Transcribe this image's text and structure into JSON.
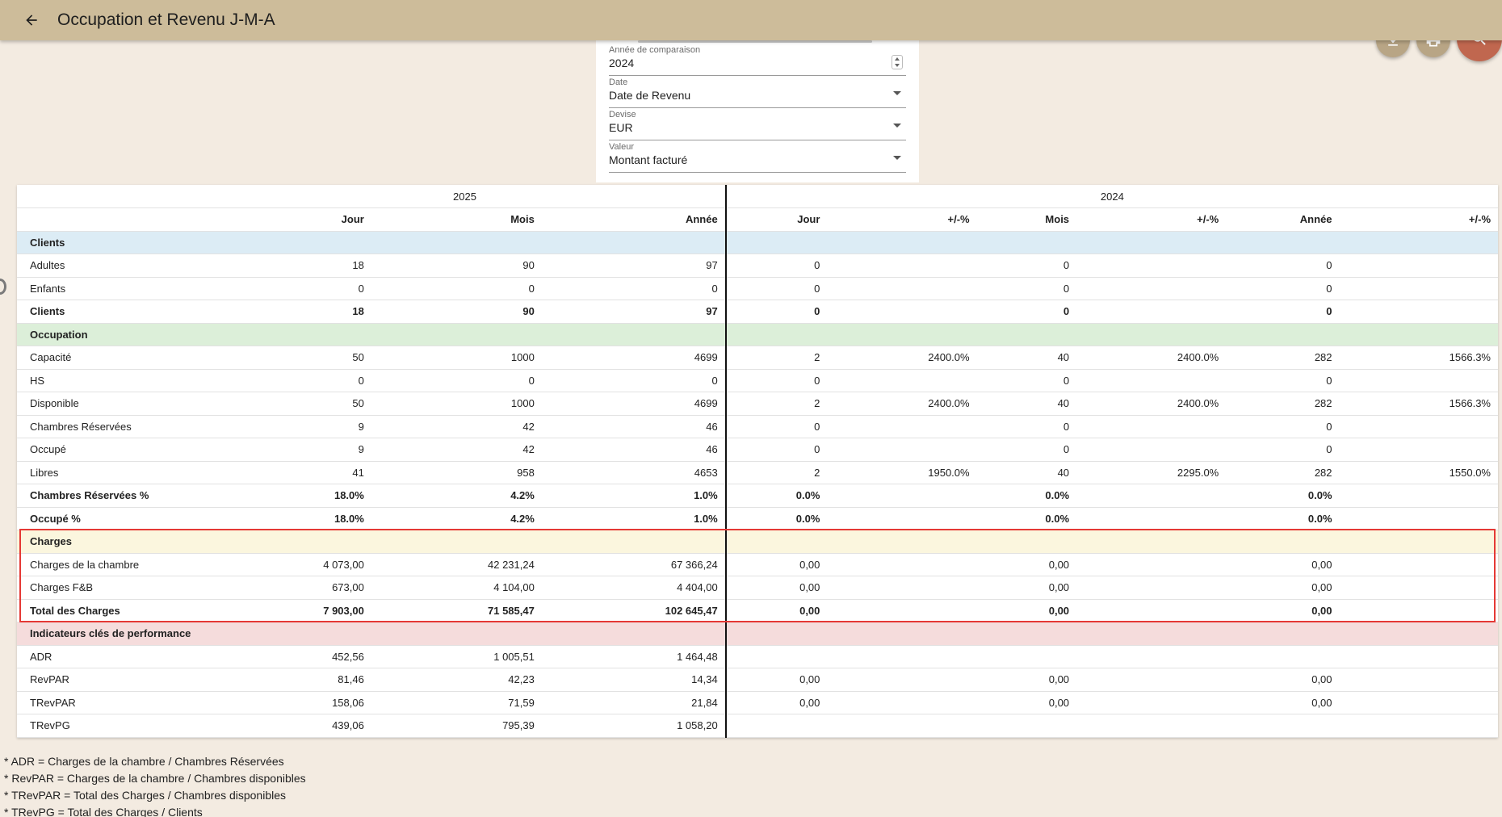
{
  "header": {
    "title": "Occupation et Revenu J-M-A"
  },
  "icons": {
    "back": "arrow-left-icon",
    "download": "download-icon",
    "print": "print-icon",
    "search": "search-icon"
  },
  "colors": {
    "appbar": "#cdbc9a",
    "fab": "#b8a585",
    "search_fab": "#c0674f",
    "highlight": "#e53935"
  },
  "filters": {
    "comparison_year": {
      "label": "Année de comparaison",
      "value": "2024"
    },
    "date": {
      "label": "Date",
      "value": "Date de Revenu"
    },
    "currency": {
      "label": "Devise",
      "value": "EUR"
    },
    "value": {
      "label": "Valeur",
      "value": "Montant facturé"
    }
  },
  "table": {
    "years": [
      "2025",
      "2024"
    ],
    "columns": [
      "",
      "Jour",
      "Mois",
      "Année",
      "Jour",
      "+/-%",
      "Mois",
      "+/-%",
      "Année",
      "+/-%"
    ],
    "rows": [
      {
        "type": "sec-clients",
        "cells": [
          "Clients",
          "",
          "",
          "",
          "",
          "",
          "",
          "",
          "",
          ""
        ]
      },
      {
        "type": "row",
        "cells": [
          "Adultes",
          "18",
          "90",
          "97",
          "0",
          "",
          "0",
          "",
          "0",
          ""
        ]
      },
      {
        "type": "row",
        "cells": [
          "Enfants",
          "0",
          "0",
          "0",
          "0",
          "",
          "0",
          "",
          "0",
          ""
        ]
      },
      {
        "type": "total",
        "cells": [
          "Clients",
          "18",
          "90",
          "97",
          "0",
          "",
          "0",
          "",
          "0",
          ""
        ]
      },
      {
        "type": "sec-occ",
        "cells": [
          "Occupation",
          "",
          "",
          "",
          "",
          "",
          "",
          "",
          "",
          ""
        ]
      },
      {
        "type": "row",
        "cells": [
          "Capacité",
          "50",
          "1000",
          "4699",
          "2",
          "2400.0%",
          "40",
          "2400.0%",
          "282",
          "1566.3%"
        ]
      },
      {
        "type": "row",
        "cells": [
          "HS",
          "0",
          "0",
          "0",
          "0",
          "",
          "0",
          "",
          "0",
          ""
        ]
      },
      {
        "type": "row",
        "cells": [
          "Disponible",
          "50",
          "1000",
          "4699",
          "2",
          "2400.0%",
          "40",
          "2400.0%",
          "282",
          "1566.3%"
        ]
      },
      {
        "type": "row",
        "cells": [
          "Chambres Réservées",
          "9",
          "42",
          "46",
          "0",
          "",
          "0",
          "",
          "0",
          ""
        ]
      },
      {
        "type": "row",
        "cells": [
          "Occupé",
          "9",
          "42",
          "46",
          "0",
          "",
          "0",
          "",
          "0",
          ""
        ]
      },
      {
        "type": "row",
        "cells": [
          "Libres",
          "41",
          "958",
          "4653",
          "2",
          "1950.0%",
          "40",
          "2295.0%",
          "282",
          "1550.0%"
        ]
      },
      {
        "type": "total",
        "cells": [
          "Chambres Réservées %",
          "18.0%",
          "4.2%",
          "1.0%",
          "0.0%",
          "",
          "0.0%",
          "",
          "0.0%",
          ""
        ]
      },
      {
        "type": "total",
        "cells": [
          "Occupé %",
          "18.0%",
          "4.2%",
          "1.0%",
          "0.0%",
          "",
          "0.0%",
          "",
          "0.0%",
          ""
        ]
      },
      {
        "type": "sec-charges",
        "cells": [
          "Charges",
          "",
          "",
          "",
          "",
          "",
          "",
          "",
          "",
          ""
        ]
      },
      {
        "type": "row",
        "cells": [
          "Charges de la chambre",
          "4 073,00",
          "42 231,24",
          "67 366,24",
          "0,00",
          "",
          "0,00",
          "",
          "0,00",
          ""
        ]
      },
      {
        "type": "row",
        "cells": [
          "Charges F&B",
          "673,00",
          "4 104,00",
          "4 404,00",
          "0,00",
          "",
          "0,00",
          "",
          "0,00",
          ""
        ]
      },
      {
        "type": "total",
        "cells": [
          "Total des Charges",
          "7 903,00",
          "71 585,47",
          "102 645,47",
          "0,00",
          "",
          "0,00",
          "",
          "0,00",
          ""
        ]
      },
      {
        "type": "sec-kpi",
        "cells": [
          "Indicateurs clés de performance",
          "",
          "",
          "",
          "",
          "",
          "",
          "",
          "",
          ""
        ]
      },
      {
        "type": "row",
        "cells": [
          "ADR",
          "452,56",
          "1 005,51",
          "1 464,48",
          "",
          "",
          "",
          "",
          "",
          ""
        ]
      },
      {
        "type": "row",
        "cells": [
          "RevPAR",
          "81,46",
          "42,23",
          "14,34",
          "0,00",
          "",
          "0,00",
          "",
          "0,00",
          ""
        ]
      },
      {
        "type": "row",
        "cells": [
          "TRevPAR",
          "158,06",
          "71,59",
          "21,84",
          "0,00",
          "",
          "0,00",
          "",
          "0,00",
          ""
        ]
      },
      {
        "type": "row",
        "cells": [
          "TRevPG",
          "439,06",
          "795,39",
          "1 058,20",
          "",
          "",
          "",
          "",
          "",
          ""
        ]
      }
    ]
  },
  "notes": [
    "* ADR = Charges de la chambre / Chambres Réservées",
    "* RevPAR = Charges de la chambre / Chambres disponibles",
    "* TRevPAR = Total des Charges / Chambres disponibles",
    "* TRevPG = Total des Charges / Clients"
  ]
}
